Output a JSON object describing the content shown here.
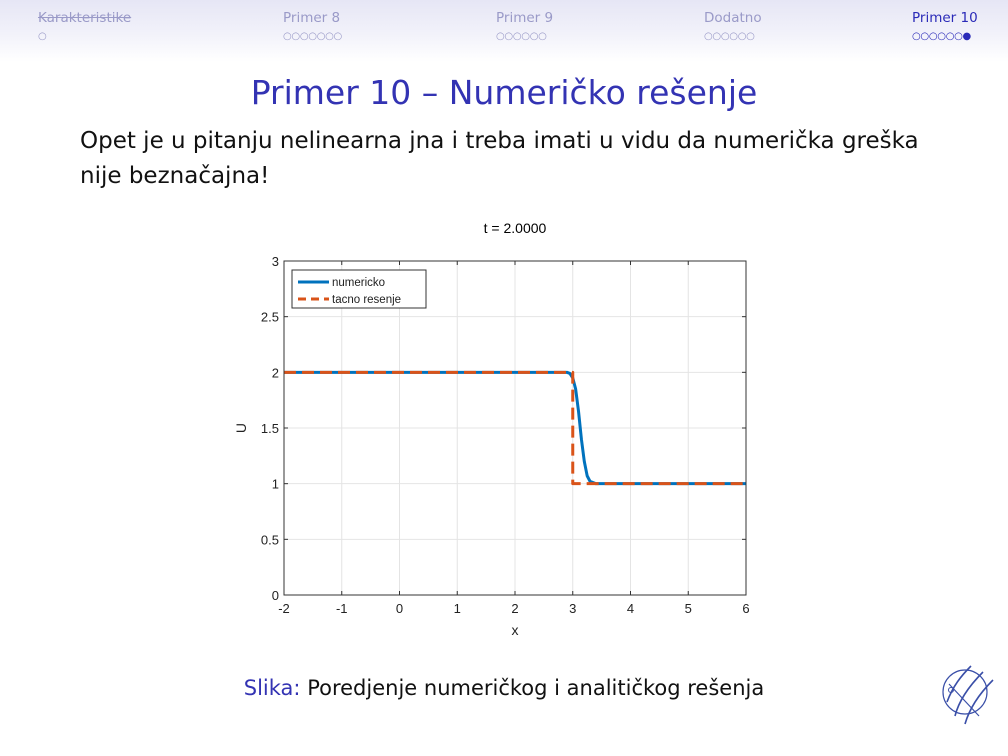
{
  "nav": {
    "sections": [
      {
        "label": "Karakteristike",
        "dots": "○",
        "active": false
      },
      {
        "label": "Primer 8",
        "dots": "○○○○○○○",
        "active": false
      },
      {
        "label": "Primer 9",
        "dots": "○○○○○○",
        "active": false
      },
      {
        "label": "Dodatno",
        "dots": "○○○○○○",
        "active": false
      },
      {
        "label": "Primer 10",
        "dots": "○○○○○○●",
        "active": true
      }
    ]
  },
  "slide": {
    "title": "Primer 10 – Numeričko rešenje",
    "body": "Opet je u pitanju nelinearna jna i treba imati u vidu da numerička greška nije beznačajna!",
    "caption_label": "Slika:",
    "caption_text": "Poredjenje numeričkog i analitičkog rešenja"
  },
  "colors": {
    "accent": "#3333b3",
    "nav_inactive": "#9a9ac8",
    "series_numericko": "#0072bd",
    "series_tacno": "#d95319"
  },
  "icons": {
    "logo": "university-logo"
  },
  "chart_data": {
    "type": "line",
    "title": "t = 2.0000",
    "xlabel": "x",
    "ylabel": "U",
    "xlim": [
      -2,
      6
    ],
    "ylim": [
      0,
      3
    ],
    "xticks": [
      -2,
      -1,
      0,
      1,
      2,
      3,
      4,
      5,
      6
    ],
    "yticks": [
      0,
      0.5,
      1,
      1.5,
      2,
      2.5,
      3
    ],
    "xtick_labels": [
      "-2",
      "-1",
      "0",
      "1",
      "2",
      "3",
      "4",
      "5",
      "6"
    ],
    "ytick_labels": [
      "0",
      "0.5",
      "1",
      "1.5",
      "2",
      "2.5",
      "3"
    ],
    "grid": true,
    "legend_position": "top-left",
    "series": [
      {
        "name": "numericko",
        "style": "solid",
        "x": [
          -2,
          2.9,
          2.95,
          3.0,
          3.05,
          3.1,
          3.15,
          3.2,
          3.25,
          3.3,
          3.4,
          3.5,
          6
        ],
        "y": [
          2,
          2,
          1.99,
          1.95,
          1.85,
          1.65,
          1.4,
          1.2,
          1.07,
          1.02,
          1.0,
          1.0,
          1.0
        ]
      },
      {
        "name": "tacno resenje",
        "style": "dashed",
        "x": [
          -2,
          3,
          3,
          6
        ],
        "y": [
          2,
          2,
          1,
          1
        ]
      }
    ]
  }
}
